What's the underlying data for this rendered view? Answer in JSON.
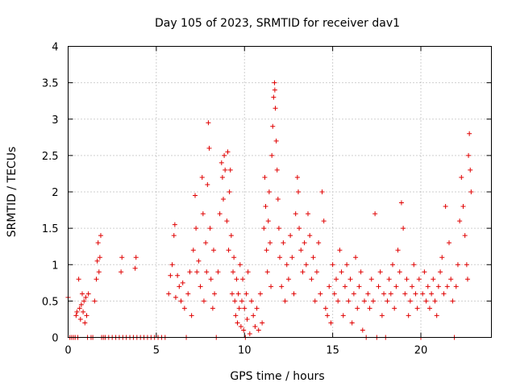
{
  "chart_data": {
    "type": "scatter",
    "title": "Day 105 of 2023, SRMTID for receiver dav1",
    "xlabel": "GPS time / hours",
    "ylabel": "SRMTID / TECUs",
    "xlim": [
      0,
      24
    ],
    "ylim": [
      0,
      4
    ],
    "x_ticks": [
      0,
      5,
      10,
      15,
      20
    ],
    "x_tick_labels": [
      "0",
      "5",
      "10",
      "15",
      "20"
    ],
    "y_ticks": [
      0,
      0.5,
      1,
      1.5,
      2,
      2.5,
      3,
      3.5,
      4
    ],
    "y_tick_labels": [
      "0",
      "0.5",
      "1",
      "1.5",
      "2",
      "2.5",
      "3",
      "3.5",
      "4"
    ],
    "grid": true,
    "marker": "+",
    "color": "#e00000",
    "series": [
      {
        "name": "dav1",
        "points": [
          [
            0.0,
            0.55
          ],
          [
            0.1,
            0.0
          ],
          [
            0.2,
            0.0
          ],
          [
            0.3,
            0.0
          ],
          [
            0.4,
            0.0
          ],
          [
            0.45,
            0.3
          ],
          [
            0.5,
            0.35
          ],
          [
            0.55,
            0.0
          ],
          [
            0.6,
            0.8
          ],
          [
            0.65,
            0.4
          ],
          [
            0.7,
            0.25
          ],
          [
            0.75,
            0.45
          ],
          [
            0.8,
            0.6
          ],
          [
            0.85,
            0.35
          ],
          [
            0.9,
            0.5
          ],
          [
            0.95,
            0.2
          ],
          [
            1.0,
            0.55
          ],
          [
            1.05,
            0.3
          ],
          [
            1.1,
            0.0
          ],
          [
            1.15,
            0.6
          ],
          [
            1.3,
            0.0
          ],
          [
            1.4,
            0.0
          ],
          [
            1.5,
            0.5
          ],
          [
            1.6,
            0.8
          ],
          [
            1.65,
            1.05
          ],
          [
            1.7,
            1.3
          ],
          [
            1.75,
            0.9
          ],
          [
            1.8,
            1.1
          ],
          [
            1.85,
            1.4
          ],
          [
            1.9,
            0.0
          ],
          [
            2.0,
            0.0
          ],
          [
            2.1,
            0.0
          ],
          [
            2.3,
            0.0
          ],
          [
            2.5,
            0.0
          ],
          [
            2.7,
            0.0
          ],
          [
            2.9,
            0.0
          ],
          [
            3.0,
            0.9
          ],
          [
            3.05,
            1.1
          ],
          [
            3.1,
            0.0
          ],
          [
            3.3,
            0.0
          ],
          [
            3.5,
            0.0
          ],
          [
            3.7,
            0.0
          ],
          [
            3.8,
            0.95
          ],
          [
            3.85,
            1.1
          ],
          [
            3.9,
            0.0
          ],
          [
            4.1,
            0.0
          ],
          [
            4.3,
            0.0
          ],
          [
            4.5,
            0.0
          ],
          [
            4.7,
            0.0
          ],
          [
            4.9,
            0.0
          ],
          [
            5.1,
            0.0
          ],
          [
            5.3,
            0.0
          ],
          [
            5.5,
            0.0
          ],
          [
            5.7,
            0.6
          ],
          [
            5.8,
            0.85
          ],
          [
            5.9,
            1.0
          ],
          [
            6.0,
            1.4
          ],
          [
            6.05,
            1.55
          ],
          [
            6.1,
            0.55
          ],
          [
            6.2,
            0.85
          ],
          [
            6.3,
            0.7
          ],
          [
            6.4,
            0.5
          ],
          [
            6.5,
            0.75
          ],
          [
            6.6,
            0.4
          ],
          [
            6.7,
            0.0
          ],
          [
            6.8,
            0.6
          ],
          [
            6.9,
            0.9
          ],
          [
            7.0,
            0.3
          ],
          [
            7.1,
            1.2
          ],
          [
            7.2,
            1.95
          ],
          [
            7.25,
            1.5
          ],
          [
            7.3,
            0.9
          ],
          [
            7.4,
            1.05
          ],
          [
            7.5,
            0.7
          ],
          [
            7.6,
            2.2
          ],
          [
            7.65,
            1.7
          ],
          [
            7.7,
            0.5
          ],
          [
            7.8,
            1.3
          ],
          [
            7.85,
            0.9
          ],
          [
            7.9,
            2.1
          ],
          [
            7.95,
            2.95
          ],
          [
            8.0,
            2.6
          ],
          [
            8.05,
            1.5
          ],
          [
            8.1,
            0.8
          ],
          [
            8.2,
            0.4
          ],
          [
            8.25,
            1.2
          ],
          [
            8.3,
            0.6
          ],
          [
            8.4,
            0.0
          ],
          [
            8.5,
            0.9
          ],
          [
            8.6,
            1.7
          ],
          [
            8.7,
            2.4
          ],
          [
            8.75,
            2.2
          ],
          [
            8.8,
            1.9
          ],
          [
            8.85,
            2.5
          ],
          [
            8.9,
            2.3
          ],
          [
            9.0,
            1.6
          ],
          [
            9.05,
            2.55
          ],
          [
            9.1,
            1.2
          ],
          [
            9.15,
            2.0
          ],
          [
            9.2,
            2.3
          ],
          [
            9.25,
            1.4
          ],
          [
            9.3,
            0.6
          ],
          [
            9.35,
            0.9
          ],
          [
            9.4,
            1.1
          ],
          [
            9.45,
            0.5
          ],
          [
            9.5,
            0.3
          ],
          [
            9.55,
            0.8
          ],
          [
            9.6,
            0.2
          ],
          [
            9.65,
            0.6
          ],
          [
            9.7,
            0.4
          ],
          [
            9.75,
            1.0
          ],
          [
            9.8,
            0.15
          ],
          [
            9.85,
            0.5
          ],
          [
            9.9,
            0.8
          ],
          [
            9.95,
            0.1
          ],
          [
            10.0,
            0.4
          ],
          [
            10.05,
            0.0
          ],
          [
            10.1,
            0.6
          ],
          [
            10.15,
            0.25
          ],
          [
            10.2,
            0.9
          ],
          [
            10.3,
            0.05
          ],
          [
            10.4,
            0.5
          ],
          [
            10.5,
            0.3
          ],
          [
            10.6,
            0.15
          ],
          [
            10.7,
            0.4
          ],
          [
            10.8,
            0.1
          ],
          [
            10.9,
            0.6
          ],
          [
            11.0,
            0.2
          ],
          [
            11.1,
            1.5
          ],
          [
            11.15,
            2.2
          ],
          [
            11.2,
            1.8
          ],
          [
            11.25,
            1.2
          ],
          [
            11.3,
            0.9
          ],
          [
            11.35,
            1.6
          ],
          [
            11.4,
            2.0
          ],
          [
            11.45,
            1.3
          ],
          [
            11.5,
            0.7
          ],
          [
            11.55,
            2.5
          ],
          [
            11.6,
            2.9
          ],
          [
            11.65,
            3.3
          ],
          [
            11.7,
            3.5
          ],
          [
            11.72,
            3.4
          ],
          [
            11.75,
            3.15
          ],
          [
            11.8,
            2.7
          ],
          [
            11.85,
            2.3
          ],
          [
            11.9,
            1.9
          ],
          [
            11.95,
            1.5
          ],
          [
            12.0,
            1.1
          ],
          [
            12.1,
            0.7
          ],
          [
            12.2,
            1.3
          ],
          [
            12.3,
            0.5
          ],
          [
            12.4,
            1.0
          ],
          [
            12.5,
            0.8
          ],
          [
            12.6,
            1.4
          ],
          [
            12.7,
            1.1
          ],
          [
            12.8,
            0.6
          ],
          [
            12.9,
            1.7
          ],
          [
            13.0,
            2.2
          ],
          [
            13.05,
            2.0
          ],
          [
            13.1,
            1.5
          ],
          [
            13.2,
            1.2
          ],
          [
            13.3,
            0.9
          ],
          [
            13.4,
            1.3
          ],
          [
            13.5,
            1.0
          ],
          [
            13.6,
            1.7
          ],
          [
            13.7,
            1.4
          ],
          [
            13.8,
            0.8
          ],
          [
            13.9,
            1.1
          ],
          [
            14.0,
            0.5
          ],
          [
            14.1,
            0.9
          ],
          [
            14.2,
            1.3
          ],
          [
            14.3,
            0.6
          ],
          [
            14.4,
            2.0
          ],
          [
            14.5,
            1.6
          ],
          [
            14.6,
            0.4
          ],
          [
            14.7,
            0.3
          ],
          [
            14.8,
            0.7
          ],
          [
            14.9,
            0.2
          ],
          [
            15.0,
            1.0
          ],
          [
            15.1,
            0.6
          ],
          [
            15.2,
            0.8
          ],
          [
            15.3,
            0.5
          ],
          [
            15.4,
            1.2
          ],
          [
            15.5,
            0.9
          ],
          [
            15.6,
            0.3
          ],
          [
            15.7,
            0.7
          ],
          [
            15.8,
            1.0
          ],
          [
            15.9,
            0.5
          ],
          [
            16.0,
            0.8
          ],
          [
            16.1,
            0.2
          ],
          [
            16.2,
            0.6
          ],
          [
            16.3,
            1.1
          ],
          [
            16.4,
            0.4
          ],
          [
            16.5,
            0.7
          ],
          [
            16.6,
            0.9
          ],
          [
            16.7,
            0.1
          ],
          [
            16.8,
            0.5
          ],
          [
            16.9,
            0.0
          ],
          [
            17.0,
            0.6
          ],
          [
            17.1,
            0.4
          ],
          [
            17.2,
            0.8
          ],
          [
            17.3,
            0.5
          ],
          [
            17.4,
            1.7
          ],
          [
            17.5,
            0.0
          ],
          [
            17.6,
            0.7
          ],
          [
            17.7,
            0.9
          ],
          [
            17.8,
            0.3
          ],
          [
            17.9,
            0.6
          ],
          [
            18.0,
            0.0
          ],
          [
            18.1,
            0.5
          ],
          [
            18.2,
            0.8
          ],
          [
            18.3,
            0.6
          ],
          [
            18.4,
            1.0
          ],
          [
            18.5,
            0.4
          ],
          [
            18.6,
            0.7
          ],
          [
            18.7,
            1.2
          ],
          [
            18.8,
            0.9
          ],
          [
            18.9,
            1.85
          ],
          [
            19.0,
            1.5
          ],
          [
            19.1,
            0.6
          ],
          [
            19.2,
            0.8
          ],
          [
            19.3,
            0.3
          ],
          [
            19.4,
            0.5
          ],
          [
            19.5,
            0.7
          ],
          [
            19.6,
            1.0
          ],
          [
            19.7,
            0.6
          ],
          [
            19.8,
            0.4
          ],
          [
            19.9,
            0.8
          ],
          [
            20.0,
            0.0
          ],
          [
            20.1,
            0.6
          ],
          [
            20.2,
            0.9
          ],
          [
            20.3,
            0.5
          ],
          [
            20.4,
            0.7
          ],
          [
            20.5,
            0.4
          ],
          [
            20.6,
            0.6
          ],
          [
            20.7,
            0.8
          ],
          [
            20.8,
            0.5
          ],
          [
            20.9,
            0.3
          ],
          [
            21.0,
            0.7
          ],
          [
            21.1,
            0.9
          ],
          [
            21.2,
            1.1
          ],
          [
            21.3,
            0.6
          ],
          [
            21.4,
            1.8
          ],
          [
            21.5,
            0.7
          ],
          [
            21.6,
            1.3
          ],
          [
            21.7,
            0.8
          ],
          [
            21.8,
            0.5
          ],
          [
            21.9,
            0.0
          ],
          [
            22.0,
            0.7
          ],
          [
            22.1,
            1.0
          ],
          [
            22.2,
            1.6
          ],
          [
            22.3,
            2.2
          ],
          [
            22.4,
            1.8
          ],
          [
            22.5,
            1.4
          ],
          [
            22.6,
            1.0
          ],
          [
            22.65,
            0.8
          ],
          [
            22.7,
            2.5
          ],
          [
            22.75,
            2.8
          ],
          [
            22.8,
            2.3
          ],
          [
            22.85,
            2.0
          ]
        ]
      }
    ]
  }
}
